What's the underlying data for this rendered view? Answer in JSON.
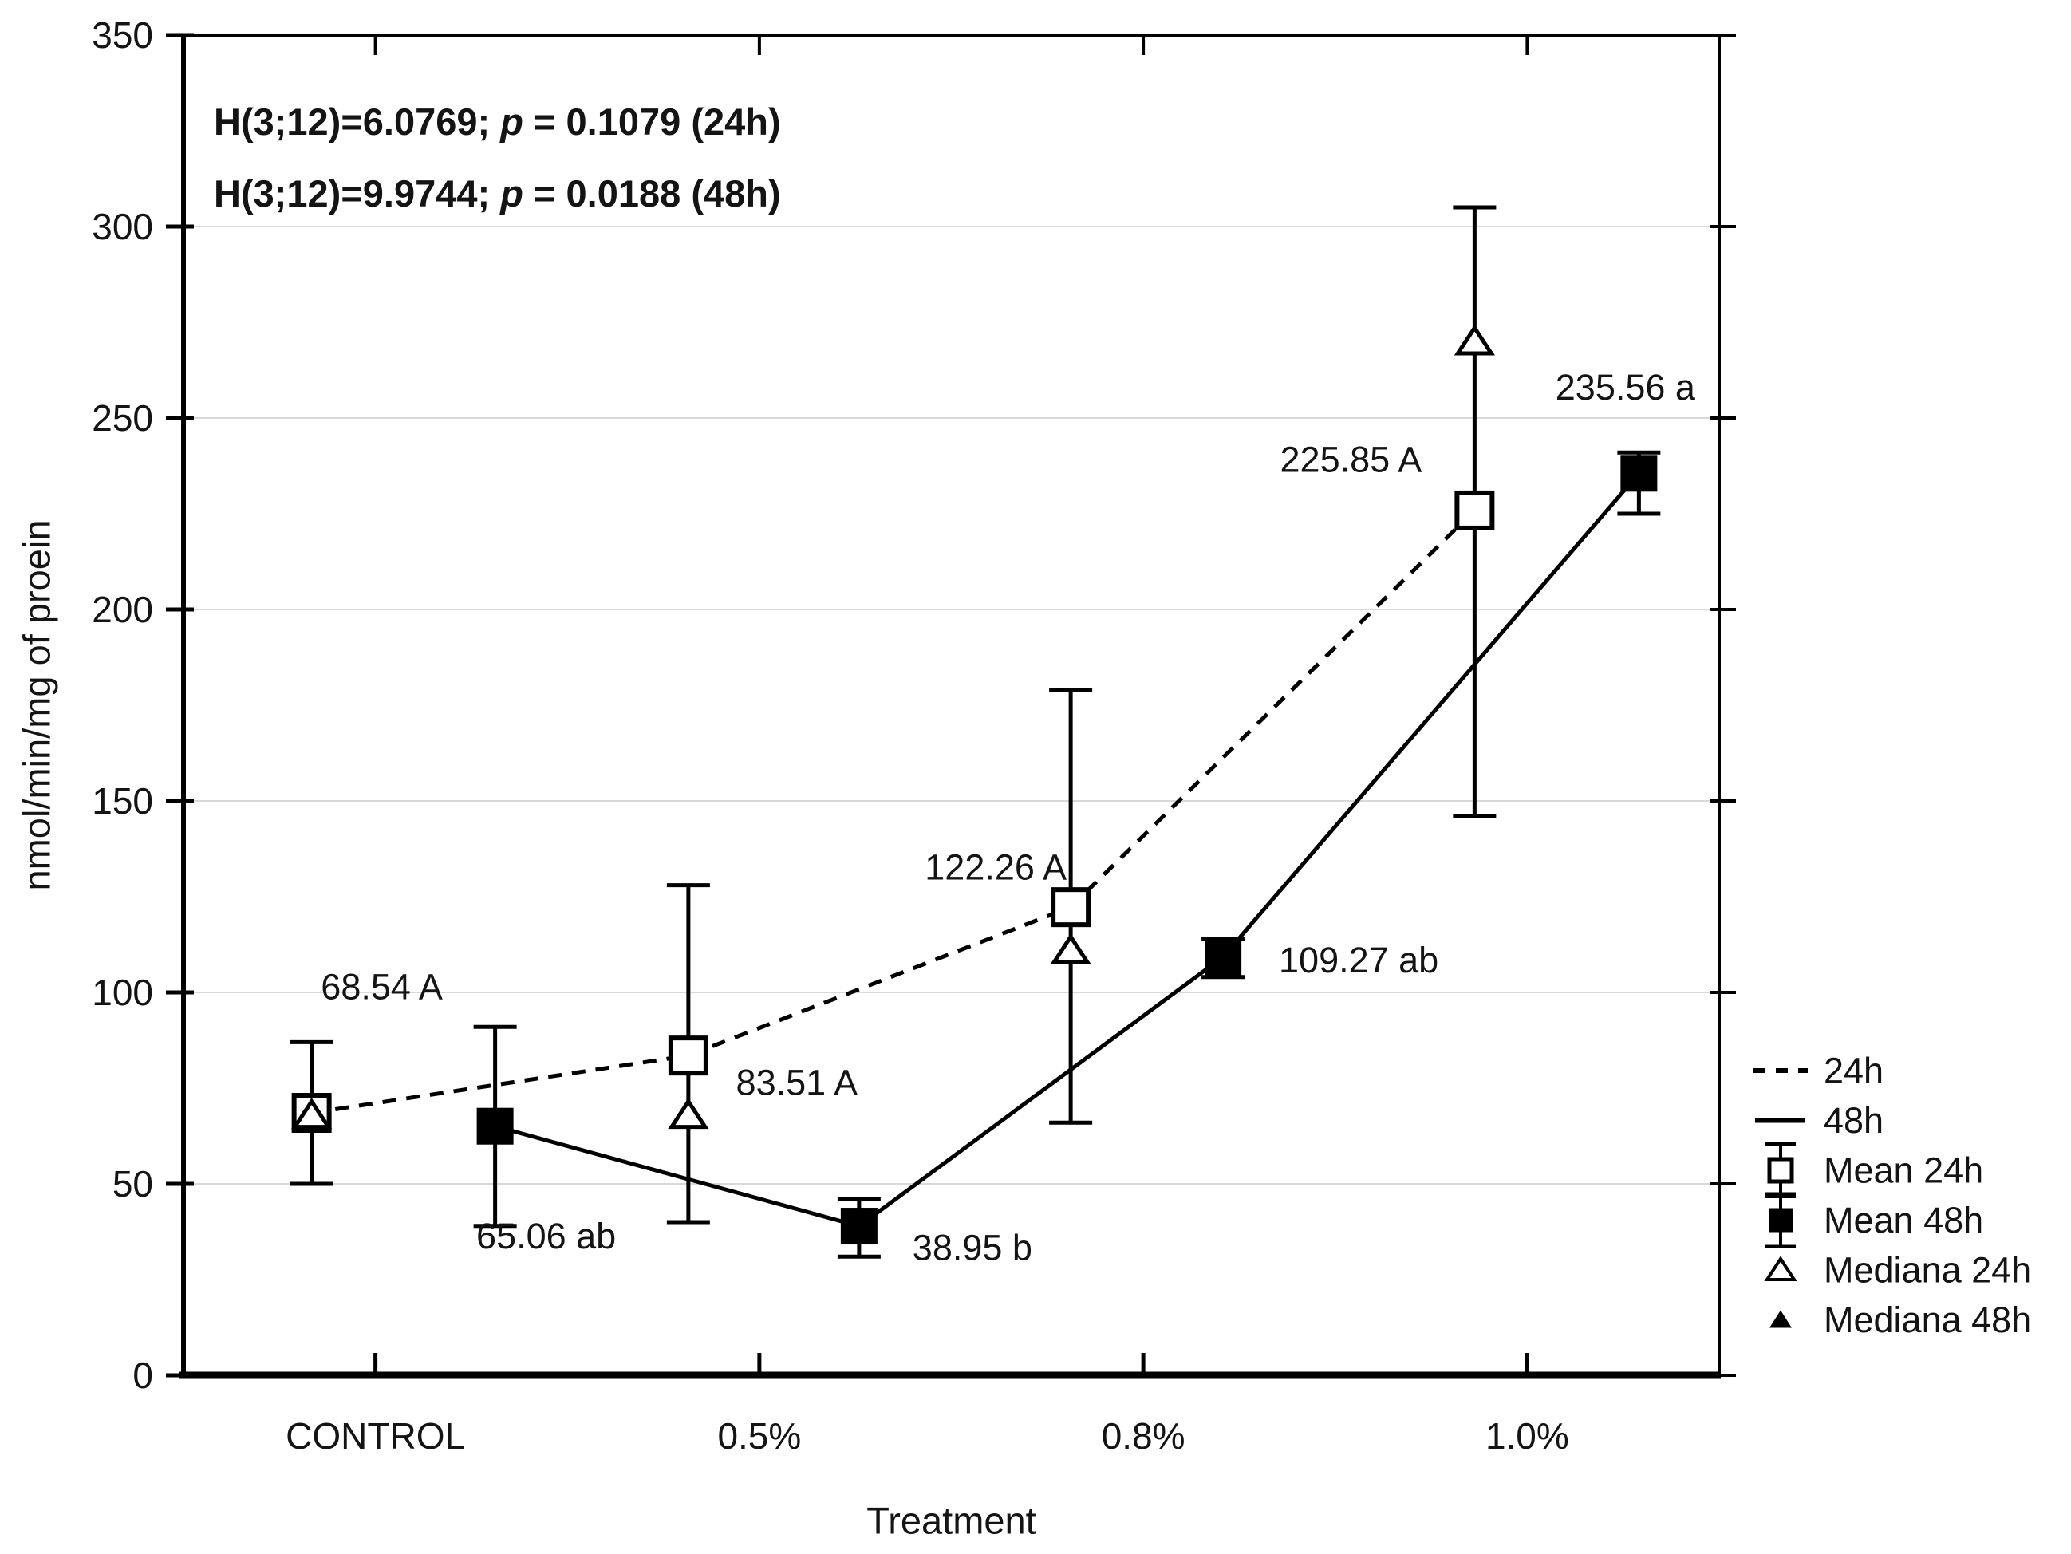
{
  "figure": {
    "background": "#ffffff"
  },
  "chart_data": {
    "type": "line",
    "title": "",
    "xlabel": "Treatment",
    "ylabel": "nmol/min/mg of proein",
    "ylim": [
      0,
      350
    ],
    "yticks": [
      0,
      50,
      100,
      150,
      200,
      250,
      300,
      350
    ],
    "grid": "horizontal",
    "grid_color": "#d9d9d9",
    "line_color": "#000000",
    "text_color": "#141414",
    "legend_position": "right-bottom-outside",
    "categories": [
      "CONTROL",
      "0.5%",
      "0.8%",
      "1.0%"
    ],
    "annotations": [
      {
        "pre": "H(3;12)=6.0769; ",
        "p": "p",
        "post": " = 0.1079 (24h)"
      },
      {
        "pre": "H(3;12)=9.9744; ",
        "p": "p",
        "post": " = 0.0188 (48h)"
      }
    ],
    "series": [
      {
        "name": "24h",
        "line_style": "dashed",
        "marker": "open-square",
        "median_marker": "open-triangle",
        "means": [
          68.54,
          83.51,
          122.26,
          225.85
        ],
        "error_low": [
          50,
          40,
          66,
          146
        ],
        "error_high": [
          87,
          128,
          179,
          305
        ],
        "medians": [
          68,
          68,
          111,
          270
        ],
        "labels": [
          "68.54 A",
          "83.51 A",
          "122.26 A",
          "225.85 A"
        ],
        "x_offsets": [
          -80,
          -89,
          -91,
          -66
        ],
        "label_offsets": [
          [
            88,
            -158
          ],
          [
            136,
            34
          ],
          [
            -94,
            -50
          ],
          [
            -155,
            -64
          ]
        ]
      },
      {
        "name": "48h",
        "line_style": "solid",
        "marker": "filled-square",
        "median_marker": "filled-triangle",
        "means": [
          65.06,
          38.95,
          109.27,
          235.56
        ],
        "error_low": [
          39,
          31,
          104,
          225
        ],
        "error_high": [
          91,
          46,
          114,
          241
        ],
        "medians": [
          65,
          39,
          109,
          236
        ],
        "labels": [
          "65.06 ab",
          "38.95 b",
          "109.27 ab",
          "235.56 a"
        ],
        "x_offsets": [
          150,
          125,
          100,
          140
        ],
        "label_offsets": [
          [
            64,
            138
          ],
          [
            142,
            27
          ],
          [
            170,
            4
          ],
          [
            -17,
            -108
          ]
        ]
      }
    ],
    "legend": [
      {
        "label": "24h",
        "icon": "dashed-line"
      },
      {
        "label": "48h",
        "icon": "solid-line"
      },
      {
        "label": "Mean 24h",
        "icon": "mean-open"
      },
      {
        "label": "Mean 48h",
        "icon": "mean-filled"
      },
      {
        "label": "Mediana 24h",
        "icon": "median-open"
      },
      {
        "label": "Mediana 48h",
        "icon": "median-filled"
      }
    ]
  }
}
